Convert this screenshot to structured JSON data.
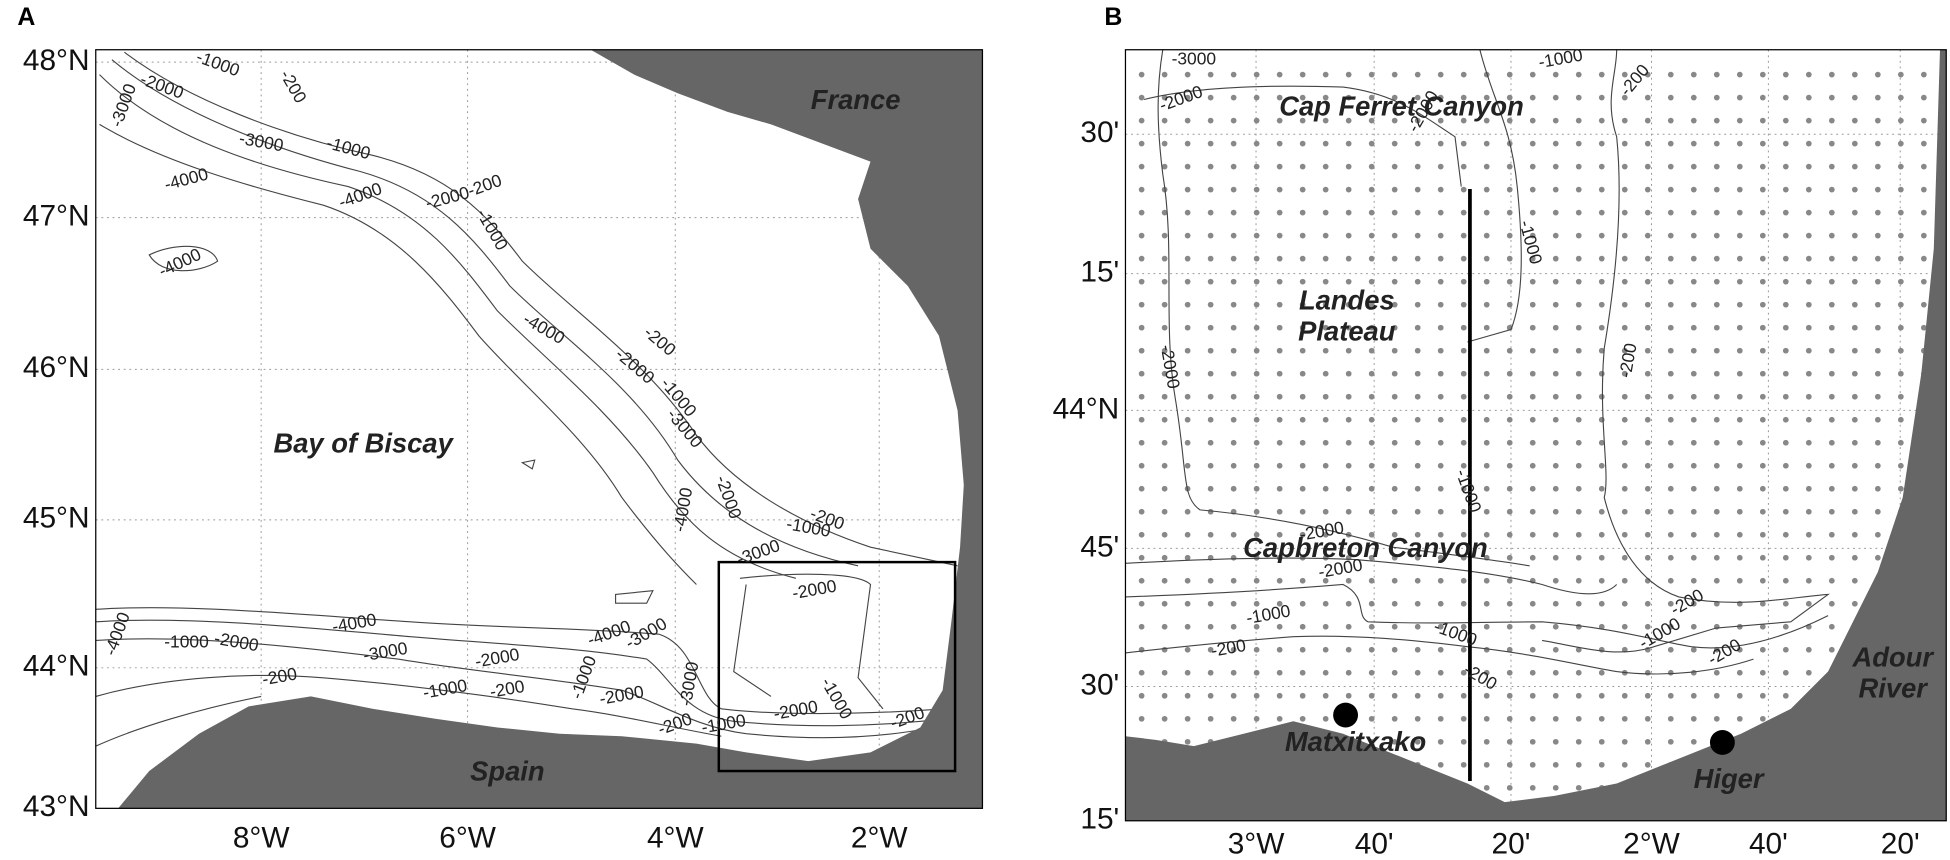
{
  "panels": [
    {
      "label": "A",
      "lat_ticks": [
        "48°N",
        "47°N",
        "46°N",
        "45°N",
        "44°N",
        "43°N"
      ],
      "lon_ticks": [
        "8°W",
        "6°W",
        "4°W",
        "2°W"
      ],
      "places": [
        [
          "France"
        ],
        [
          "Bay of Biscay"
        ],
        [
          "Spain"
        ]
      ],
      "contour_labels": [
        "-1000",
        "-2000",
        "-200",
        "-3000",
        "-3000",
        "-1000",
        "-4000",
        "-4000",
        "-2000",
        "-200",
        "-4000",
        "-1000",
        "-4000",
        "-200",
        "-2000",
        "-1000",
        "-3000",
        "-4000",
        "-2000",
        "-200",
        "-1000",
        "-3000",
        "-2000",
        "-4000",
        "-1000",
        "-2000",
        "-4000",
        "-3000",
        "-2000",
        "-4000",
        "-3000",
        "-1000",
        "-200",
        "-1000",
        "-2000",
        "-3000",
        "-200",
        "-2000",
        "-1000",
        "-200",
        "-200",
        "-1000"
      ]
    },
    {
      "label": "B",
      "lat_ticks": [
        "30'",
        "15'",
        "44°N",
        "45'",
        "30'",
        "15'"
      ],
      "lon_ticks": [
        "3°W",
        "40'",
        "20'",
        "2°W",
        "40'",
        "20'"
      ],
      "places": [
        [
          "Cap Ferret Canyon"
        ],
        [
          "Landes",
          "Plateau"
        ],
        [
          "Capbreton Canyon"
        ],
        [
          "Adour",
          "River"
        ]
      ],
      "stations": [
        "Matxitxako",
        "Higer"
      ],
      "contour_labels": [
        "-3000",
        "-2000",
        "-2000",
        "-1000",
        "-200",
        "-1000",
        "-2000",
        "-200",
        "-1000",
        "-2000",
        "-2000",
        "-1000",
        "-1000",
        "-200",
        "-200",
        "-200",
        "-1000",
        "-200"
      ]
    }
  ]
}
